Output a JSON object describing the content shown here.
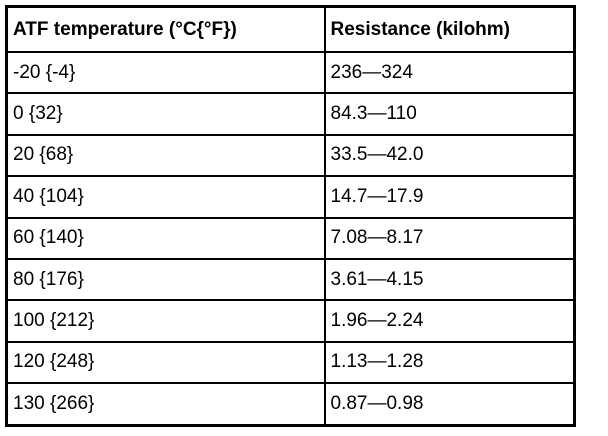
{
  "table": {
    "header": [
      "ATF temperature (°C{°F})",
      "Resistance (kilohm)"
    ],
    "rows": [
      [
        "-20 {-4}",
        "236—324"
      ],
      [
        "0 {32}",
        "84.3—110"
      ],
      [
        "20 {68}",
        "33.5—42.0"
      ],
      [
        "40 {104}",
        "14.7—17.9"
      ],
      [
        "60 {140}",
        "7.08—8.17"
      ],
      [
        "80 {176}",
        "3.61—4.15"
      ],
      [
        "100 {212}",
        "1.96—2.24"
      ],
      [
        "120 {248}",
        "1.13—1.28"
      ],
      [
        "130 {266}",
        "0.87—0.98"
      ]
    ]
  }
}
